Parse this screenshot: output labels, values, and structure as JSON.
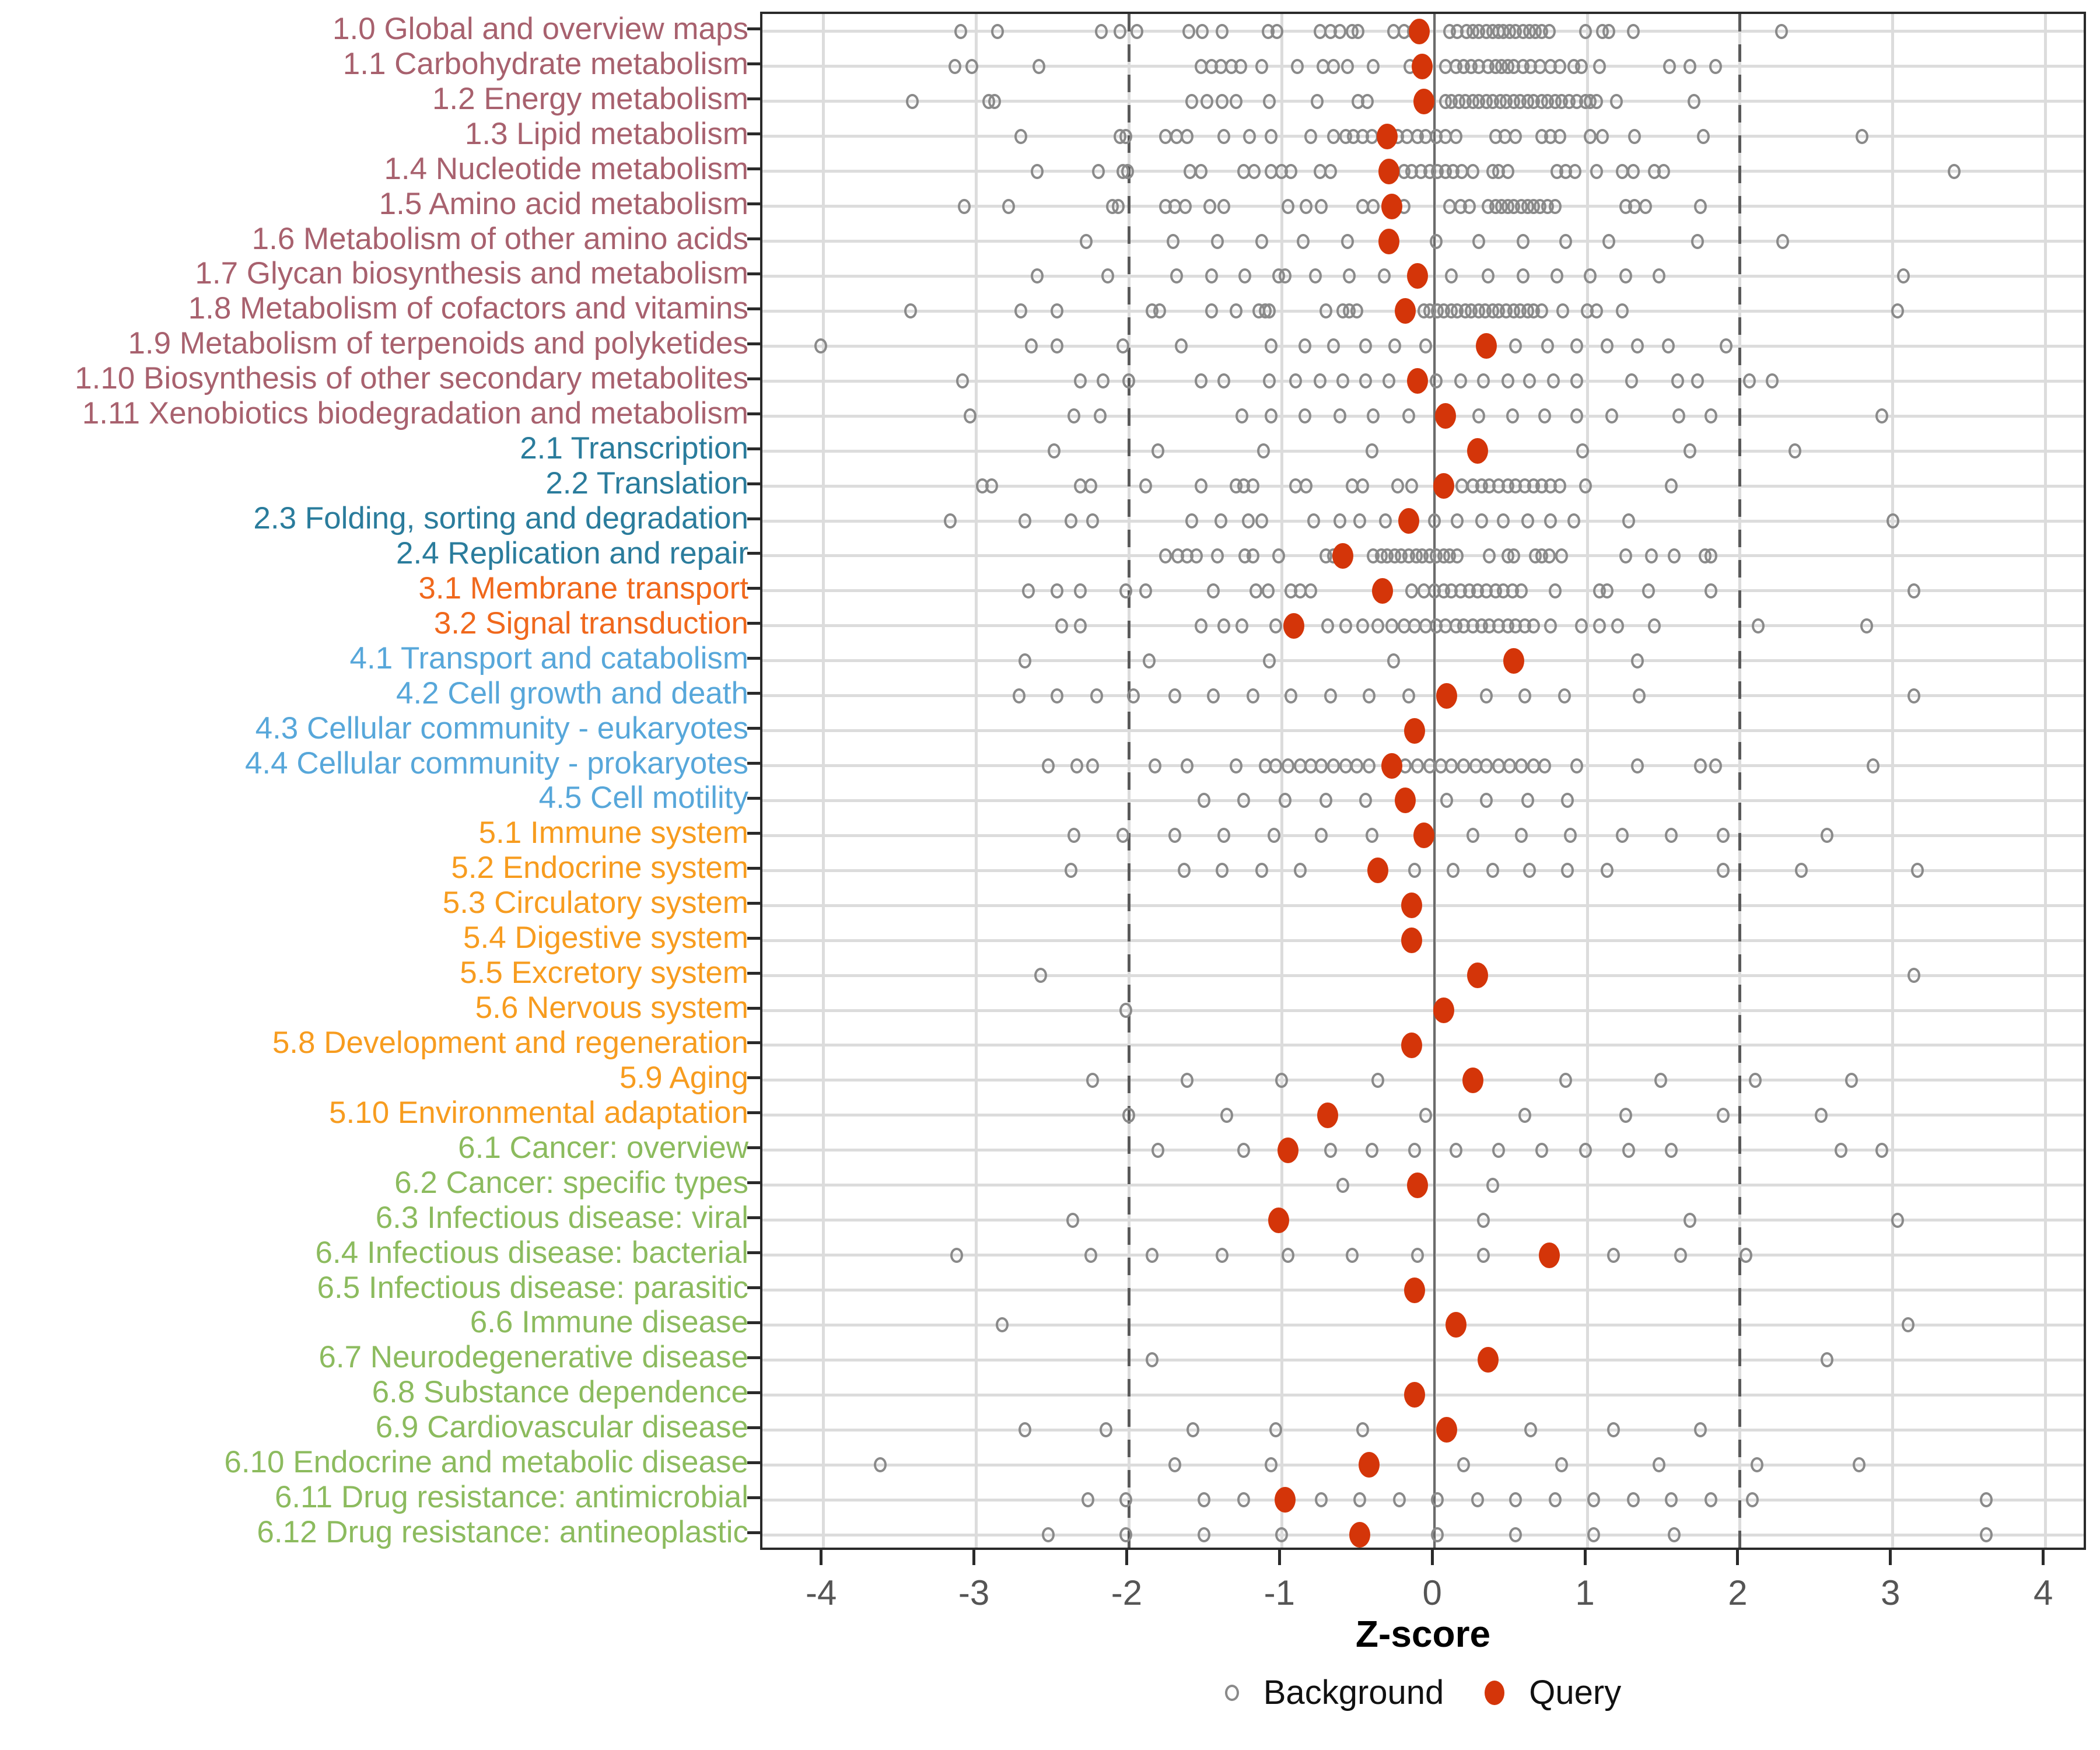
{
  "chart_data": {
    "type": "scatter",
    "title": "",
    "xlabel": "Z-score",
    "ylabel": "",
    "xlim": [
      -4.4,
      4.28
    ],
    "x_ticks": [
      -4,
      -3,
      -2,
      -1,
      0,
      1,
      2,
      3,
      4
    ],
    "zero_line": 0,
    "threshold_lines": [
      -2,
      2
    ],
    "grid": true,
    "legend_position": "bottom",
    "legend": [
      {
        "label": "Background",
        "marker": "open-circle",
        "color": "#8a8a8a"
      },
      {
        "label": "Query",
        "marker": "filled-circle",
        "color": "#d43509"
      }
    ],
    "colors": {
      "query": "#d43509",
      "background_stroke": "#8a8a8a",
      "grid": "#dcdcdc",
      "zero_line": "#6b6b6b",
      "threshold_line": "#5a5a5a",
      "axis_text": "#555555",
      "group1": "#a8616e",
      "group2": "#2a7c9c",
      "group3": "#f0681c",
      "group4": "#57a7da",
      "group5": "#f79c1f",
      "group6": "#8cbb5e"
    },
    "rows": [
      {
        "label": "1.0 Global and overview maps",
        "group": "group1",
        "query": -0.1,
        "background": [
          -3.1,
          -2.86,
          -2.18,
          -2.06,
          -1.95,
          -1.61,
          -1.52,
          -1.39,
          -1.09,
          -1.03,
          -0.75,
          -0.68,
          -0.62,
          -0.54,
          -0.5,
          -0.27,
          -0.2,
          -0.14,
          0.1,
          0.15,
          0.21,
          0.25,
          0.29,
          0.34,
          0.38,
          0.42,
          0.45,
          0.49,
          0.53,
          0.58,
          0.62,
          0.66,
          0.7,
          0.75,
          0.99,
          1.1,
          1.14,
          1.3,
          2.27
        ]
      },
      {
        "label": "1.1 Carbohydrate metabolism",
        "group": "group1",
        "query": -0.08,
        "background": [
          -3.14,
          -3.03,
          -2.59,
          -1.53,
          -1.46,
          -1.4,
          -1.33,
          -1.27,
          -1.13,
          -0.9,
          -0.73,
          -0.66,
          -0.57,
          -0.4,
          -0.16,
          0.07,
          0.14,
          0.19,
          0.24,
          0.29,
          0.35,
          0.4,
          0.44,
          0.48,
          0.52,
          0.58,
          0.63,
          0.69,
          0.76,
          0.82,
          0.91,
          0.96,
          1.08,
          1.54,
          1.67,
          1.84
        ]
      },
      {
        "label": "1.2 Energy metabolism",
        "group": "group1",
        "query": -0.07,
        "background": [
          -3.42,
          -2.92,
          -2.88,
          -1.59,
          -1.49,
          -1.39,
          -1.3,
          -1.08,
          -0.77,
          -0.5,
          -0.44,
          0.07,
          0.11,
          0.16,
          0.2,
          0.25,
          0.29,
          0.34,
          0.38,
          0.43,
          0.47,
          0.52,
          0.56,
          0.61,
          0.65,
          0.7,
          0.74,
          0.79,
          0.83,
          0.88,
          0.93,
          0.99,
          1.02,
          1.06,
          1.19,
          1.7
        ]
      },
      {
        "label": "1.3 Lipid metabolism",
        "group": "group1",
        "query": -0.31,
        "background": [
          -2.71,
          -2.06,
          -2.02,
          -1.76,
          -1.69,
          -1.62,
          -1.38,
          -1.21,
          -1.07,
          -0.81,
          -0.66,
          -0.58,
          -0.53,
          -0.47,
          -0.41,
          -0.24,
          -0.18,
          -0.11,
          -0.06,
          0.01,
          0.07,
          0.14,
          0.4,
          0.46,
          0.53,
          0.7,
          0.76,
          0.82,
          1.02,
          1.1,
          1.31,
          1.76,
          2.8
        ]
      },
      {
        "label": "1.4 Nucleotide metabolism",
        "group": "group1",
        "query": -0.3,
        "background": [
          -2.6,
          -2.2,
          -2.04,
          -2.01,
          -1.6,
          -1.53,
          -1.25,
          -1.18,
          -1.07,
          -1.0,
          -0.94,
          -0.75,
          -0.68,
          -0.2,
          -0.15,
          -0.09,
          -0.03,
          0.02,
          0.07,
          0.12,
          0.18,
          0.25,
          0.38,
          0.42,
          0.48,
          0.8,
          0.86,
          0.92,
          1.06,
          1.23,
          1.3,
          1.44,
          1.5,
          3.4
        ]
      },
      {
        "label": "1.5 Amino acid metabolism",
        "group": "group1",
        "query": -0.28,
        "background": [
          -3.08,
          -2.79,
          -2.11,
          -2.07,
          -1.76,
          -1.7,
          -1.63,
          -1.47,
          -1.38,
          -0.96,
          -0.84,
          -0.74,
          -0.47,
          -0.4,
          -0.2,
          0.1,
          0.17,
          0.23,
          0.35,
          0.4,
          0.44,
          0.48,
          0.52,
          0.57,
          0.61,
          0.65,
          0.69,
          0.74,
          0.79,
          1.25,
          1.31,
          1.38,
          1.74
        ]
      },
      {
        "label": "1.6 Metabolism of other amino acids",
        "group": "group1",
        "query": -0.3,
        "background": [
          -2.28,
          -1.71,
          -1.42,
          -1.13,
          -0.86,
          -0.57,
          0.01,
          0.29,
          0.58,
          0.86,
          1.14,
          1.72,
          2.28
        ]
      },
      {
        "label": "1.7 Glycan biosynthesis and metabolism",
        "group": "group1",
        "query": -0.11,
        "background": [
          -2.6,
          -2.14,
          -1.69,
          -1.46,
          -1.24,
          -1.02,
          -0.98,
          -0.78,
          -0.56,
          -0.33,
          0.11,
          0.35,
          0.58,
          0.8,
          1.02,
          1.25,
          1.47,
          3.07
        ]
      },
      {
        "label": "1.8 Metabolism of cofactors and vitamins",
        "group": "group1",
        "query": -0.19,
        "background": [
          -3.43,
          -2.71,
          -2.47,
          -1.85,
          -1.8,
          -1.46,
          -1.3,
          -1.15,
          -1.11,
          -1.08,
          -0.71,
          -0.6,
          -0.56,
          -0.51,
          -0.07,
          -0.03,
          0.02,
          0.06,
          0.11,
          0.15,
          0.2,
          0.24,
          0.29,
          0.33,
          0.38,
          0.42,
          0.47,
          0.52,
          0.56,
          0.61,
          0.65,
          0.7,
          0.84,
          1.0,
          1.06,
          1.23,
          3.03
        ]
      },
      {
        "label": "1.9 Metabolism of terpenoids and polyketides",
        "group": "group1",
        "query": 0.34,
        "background": [
          -4.02,
          -2.64,
          -2.47,
          -2.04,
          -1.66,
          -1.07,
          -0.85,
          -0.66,
          -0.45,
          -0.26,
          -0.06,
          0.53,
          0.74,
          0.93,
          1.13,
          1.33,
          1.53,
          1.91
        ]
      },
      {
        "label": "1.10 Biosynthesis of other secondary metabolites",
        "group": "group1",
        "query": -0.11,
        "background": [
          -3.09,
          -2.32,
          -2.17,
          -2.0,
          -1.53,
          -1.38,
          -1.08,
          -0.91,
          -0.75,
          -0.6,
          -0.45,
          -0.3,
          0.01,
          0.17,
          0.32,
          0.48,
          0.62,
          0.78,
          0.93,
          1.29,
          1.59,
          1.72,
          2.06,
          2.21
        ]
      },
      {
        "label": "1.11 Xenobiotics biodegradation and metabolism",
        "group": "group1",
        "query": 0.07,
        "background": [
          -3.04,
          -2.36,
          -2.19,
          -1.26,
          -1.07,
          -0.85,
          -0.62,
          -0.4,
          -0.17,
          0.29,
          0.51,
          0.72,
          0.93,
          1.16,
          1.6,
          1.81,
          2.93
        ]
      },
      {
        "label": "2.1 Transcription",
        "group": "group2",
        "query": 0.28,
        "background": [
          -2.49,
          -1.81,
          -1.12,
          -0.41,
          0.97,
          1.67,
          2.36
        ]
      },
      {
        "label": "2.2 Translation",
        "group": "group2",
        "query": 0.06,
        "background": [
          -2.96,
          -2.9,
          -2.32,
          -2.25,
          -1.89,
          -1.53,
          -1.3,
          -1.25,
          -1.19,
          -0.91,
          -0.84,
          -0.54,
          -0.47,
          -0.24,
          -0.15,
          0.18,
          0.25,
          0.31,
          0.36,
          0.42,
          0.48,
          0.53,
          0.59,
          0.65,
          0.7,
          0.76,
          0.82,
          0.99,
          1.55
        ]
      },
      {
        "label": "2.3 Folding, sorting and degradation",
        "group": "group2",
        "query": -0.17,
        "background": [
          -3.17,
          -2.68,
          -2.38,
          -2.24,
          -1.59,
          -1.4,
          -1.22,
          -1.13,
          -0.79,
          -0.62,
          -0.49,
          -0.32,
          0.0,
          0.15,
          0.31,
          0.45,
          0.61,
          0.76,
          0.91,
          1.27,
          3.0
        ]
      },
      {
        "label": "2.4 Replication and repair",
        "group": "group2",
        "query": -0.6,
        "background": [
          -1.76,
          -1.68,
          -1.62,
          -1.56,
          -1.42,
          -1.24,
          -1.19,
          -1.02,
          -0.71,
          -0.66,
          -0.4,
          -0.35,
          -0.31,
          -0.26,
          -0.22,
          -0.17,
          -0.12,
          -0.08,
          -0.03,
          0.01,
          0.06,
          0.1,
          0.15,
          0.36,
          0.48,
          0.52,
          0.66,
          0.7,
          0.75,
          0.83,
          1.25,
          1.42,
          1.57,
          1.77,
          1.81
        ]
      },
      {
        "label": "3.1 Membrane transport",
        "group": "group3",
        "query": -0.34,
        "background": [
          -2.66,
          -2.47,
          -2.32,
          -2.02,
          -1.89,
          -1.45,
          -1.17,
          -1.09,
          -0.94,
          -0.88,
          -0.81,
          -0.15,
          -0.07,
          0.0,
          0.06,
          0.11,
          0.17,
          0.23,
          0.28,
          0.34,
          0.4,
          0.45,
          0.51,
          0.57,
          0.79,
          1.08,
          1.13,
          1.4,
          1.81,
          3.14
        ]
      },
      {
        "label": "3.2 Signal transduction",
        "group": "group3",
        "query": -0.92,
        "background": [
          -2.44,
          -2.32,
          -1.53,
          -1.38,
          -1.26,
          -1.04,
          -0.7,
          -0.58,
          -0.47,
          -0.37,
          -0.28,
          -0.2,
          -0.13,
          -0.06,
          0.01,
          0.07,
          0.14,
          0.19,
          0.25,
          0.31,
          0.36,
          0.42,
          0.48,
          0.53,
          0.59,
          0.65,
          0.76,
          0.96,
          1.08,
          1.2,
          1.44,
          2.12,
          2.83
        ]
      },
      {
        "label": "4.1 Transport and catabolism",
        "group": "group4",
        "query": 0.52,
        "background": [
          -2.68,
          -1.87,
          -1.08,
          -0.27,
          1.33
        ]
      },
      {
        "label": "4.2 Cell growth and death",
        "group": "group4",
        "query": 0.08,
        "background": [
          -2.72,
          -2.47,
          -2.21,
          -1.97,
          -1.7,
          -1.45,
          -1.19,
          -0.94,
          -0.68,
          -0.43,
          -0.17,
          0.34,
          0.59,
          0.85,
          1.34,
          3.14
        ]
      },
      {
        "label": "4.3 Cellular community - eukaryotes",
        "group": "group4",
        "query": -0.13,
        "background": []
      },
      {
        "label": "4.4 Cellular community - prokaryotes",
        "group": "group4",
        "query": -0.28,
        "background": [
          -2.53,
          -2.34,
          -2.24,
          -1.83,
          -1.62,
          -1.3,
          -1.11,
          -1.04,
          -0.96,
          -0.88,
          -0.81,
          -0.74,
          -0.66,
          -0.58,
          -0.51,
          -0.43,
          -0.19,
          -0.11,
          -0.03,
          0.04,
          0.11,
          0.19,
          0.27,
          0.34,
          0.42,
          0.49,
          0.57,
          0.65,
          0.72,
          0.93,
          1.33,
          1.74,
          1.84,
          2.87
        ]
      },
      {
        "label": "4.5 Cell motility",
        "group": "group4",
        "query": -0.19,
        "background": [
          -1.51,
          -1.25,
          -0.98,
          -0.71,
          -0.45,
          0.08,
          0.34,
          0.61,
          0.87
        ]
      },
      {
        "label": "5.1 Immune system",
        "group": "group5",
        "query": -0.07,
        "background": [
          -2.36,
          -2.04,
          -1.7,
          -1.38,
          -1.05,
          -0.74,
          -0.41,
          0.25,
          0.57,
          0.89,
          1.23,
          1.55,
          1.89,
          2.57
        ]
      },
      {
        "label": "5.2 Endocrine system",
        "group": "group5",
        "query": -0.37,
        "background": [
          -2.38,
          -1.64,
          -1.39,
          -1.13,
          -0.88,
          -0.13,
          0.12,
          0.38,
          0.62,
          0.87,
          1.13,
          1.89,
          2.4,
          3.16
        ]
      },
      {
        "label": "5.3 Circulatory system",
        "group": "group5",
        "query": -0.15,
        "background": []
      },
      {
        "label": "5.4 Digestive system",
        "group": "group5",
        "query": -0.15,
        "background": []
      },
      {
        "label": "5.5 Excretory system",
        "group": "group5",
        "query": 0.28,
        "background": [
          -2.58,
          3.14
        ]
      },
      {
        "label": "5.6 Nervous system",
        "group": "group5",
        "query": 0.06,
        "background": [
          -2.02
        ]
      },
      {
        "label": "5.8 Development and regeneration",
        "group": "group5",
        "query": -0.15,
        "background": []
      },
      {
        "label": "5.9 Aging",
        "group": "group5",
        "query": 0.25,
        "background": [
          -2.24,
          -1.62,
          -1.0,
          -0.37,
          0.86,
          1.48,
          2.1,
          2.73
        ]
      },
      {
        "label": "5.10 Environmental adaptation",
        "group": "group5",
        "query": -0.7,
        "background": [
          -2.0,
          -1.36,
          -0.06,
          0.59,
          1.25,
          1.89,
          2.53
        ]
      },
      {
        "label": "6.1 Cancer: overview",
        "group": "group6",
        "query": -0.96,
        "background": [
          -1.81,
          -1.25,
          -0.68,
          -0.41,
          -0.13,
          0.14,
          0.42,
          0.7,
          0.99,
          1.27,
          1.55,
          2.66,
          2.93
        ]
      },
      {
        "label": "6.2 Cancer: specific types",
        "group": "group6",
        "query": -0.11,
        "background": [
          -0.6,
          0.38
        ]
      },
      {
        "label": "6.3 Infectious disease: viral",
        "group": "group6",
        "query": -1.02,
        "background": [
          -2.37,
          0.32,
          1.67,
          3.03
        ]
      },
      {
        "label": "6.4 Infectious disease: bacterial",
        "group": "group6",
        "query": 0.75,
        "background": [
          -3.13,
          -2.25,
          -1.85,
          -1.39,
          -0.96,
          -0.54,
          -0.11,
          0.32,
          1.17,
          1.61,
          2.04
        ]
      },
      {
        "label": "6.5 Infectious disease: parasitic",
        "group": "group6",
        "query": -0.13,
        "background": []
      },
      {
        "label": "6.6 Immune disease",
        "group": "group6",
        "query": 0.14,
        "background": [
          -2.83,
          3.1
        ]
      },
      {
        "label": "6.7 Neurodegenerative disease",
        "group": "group6",
        "query": 0.35,
        "background": [
          -1.85,
          2.57
        ]
      },
      {
        "label": "6.8 Substance dependence",
        "group": "group6",
        "query": -0.13,
        "background": []
      },
      {
        "label": "6.9 Cardiovascular disease",
        "group": "group6",
        "query": 0.08,
        "background": [
          -2.68,
          -2.15,
          -1.58,
          -1.04,
          -0.47,
          0.63,
          1.17,
          1.74
        ]
      },
      {
        "label": "6.10 Endocrine and metabolic disease",
        "group": "group6",
        "query": -0.43,
        "background": [
          -3.63,
          -1.7,
          -1.07,
          0.19,
          0.83,
          1.47,
          2.11,
          2.78
        ]
      },
      {
        "label": "6.11 Drug resistance: antimicrobial",
        "group": "group6",
        "query": -0.98,
        "background": [
          -2.27,
          -2.02,
          -1.51,
          -1.25,
          -0.74,
          -0.49,
          -0.23,
          0.02,
          0.28,
          0.53,
          0.79,
          1.04,
          1.3,
          1.55,
          1.81,
          2.08,
          3.61
        ]
      },
      {
        "label": "6.12 Drug resistance: antineoplastic",
        "group": "group6",
        "query": -0.49,
        "background": [
          -2.53,
          -2.02,
          -1.51,
          -1.0,
          0.02,
          0.53,
          1.04,
          1.57,
          3.61
        ]
      }
    ]
  }
}
